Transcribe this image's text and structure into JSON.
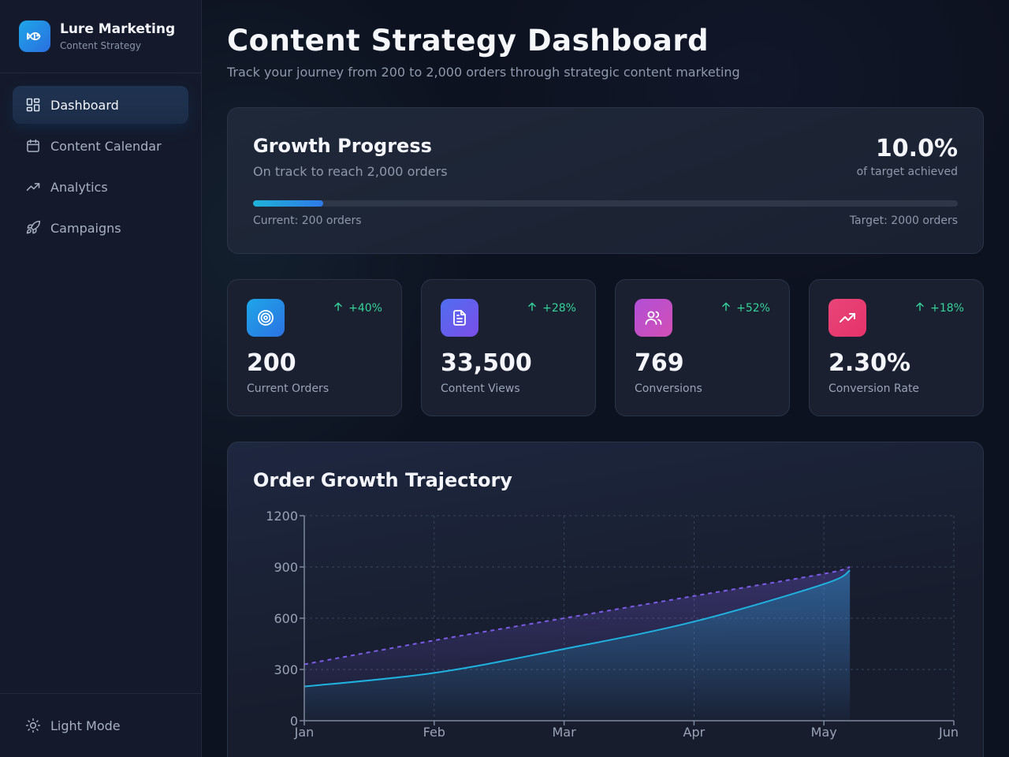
{
  "brand": {
    "name": "Lure Marketing",
    "subtitle": "Content Strategy",
    "logo_icon": "fish-icon"
  },
  "sidebar": {
    "items": [
      {
        "label": "Dashboard",
        "icon": "dashboard-icon",
        "active": true
      },
      {
        "label": "Content Calendar",
        "icon": "calendar-icon",
        "active": false
      },
      {
        "label": "Analytics",
        "icon": "trending-up-icon",
        "active": false
      },
      {
        "label": "Campaigns",
        "icon": "rocket-icon",
        "active": false
      }
    ],
    "footer": {
      "label": "Light Mode",
      "icon": "sun-icon"
    }
  },
  "header": {
    "title": "Content Strategy Dashboard",
    "subtitle": "Track your journey from 200 to 2,000 orders through strategic content marketing"
  },
  "growth": {
    "title": "Growth Progress",
    "subtitle": "On track to reach 2,000 orders",
    "percent": "10.0%",
    "percent_label": "of target achieved",
    "progress_fraction": 0.1,
    "current": "Current: 200 orders",
    "target": "Target: 2000 orders"
  },
  "stats": [
    {
      "value": "200",
      "label": "Current Orders",
      "change": "+40%",
      "icon": "target-icon",
      "color_from": "#1ea6e8",
      "color_to": "#2b72e2"
    },
    {
      "value": "33,500",
      "label": "Content Views",
      "change": "+28%",
      "icon": "document-icon",
      "color_from": "#4f6ef0",
      "color_to": "#7b4ee8"
    },
    {
      "value": "769",
      "label": "Conversions",
      "change": "+52%",
      "icon": "users-icon",
      "color_from": "#b24fd6",
      "color_to": "#d24fb6"
    },
    {
      "value": "2.30%",
      "label": "Conversion Rate",
      "change": "+18%",
      "icon": "trending-up-icon",
      "color_from": "#e8457a",
      "color_to": "#e6336a"
    }
  ],
  "colors": {
    "positive": "#34d399",
    "actual_line": "#1fb2e0",
    "target_line": "#7b5ce8"
  },
  "chart_data": {
    "type": "area",
    "title": "Order Growth Trajectory",
    "categories": [
      "Jan",
      "Feb",
      "Mar",
      "Apr",
      "May",
      "Jun"
    ],
    "y_ticks": [
      "0",
      "300",
      "600",
      "900",
      "1200"
    ],
    "ylim": [
      0,
      1200
    ],
    "grid": true,
    "series": [
      {
        "line": "solid",
        "x": [
          0,
          1,
          2,
          3,
          4,
          4.2
        ],
        "values": [
          200,
          280,
          420,
          580,
          800,
          880
        ]
      },
      {
        "line": "dashed",
        "x": [
          0,
          1,
          2,
          3,
          4,
          4.2
        ],
        "values": [
          330,
          470,
          600,
          730,
          860,
          900
        ]
      }
    ]
  }
}
